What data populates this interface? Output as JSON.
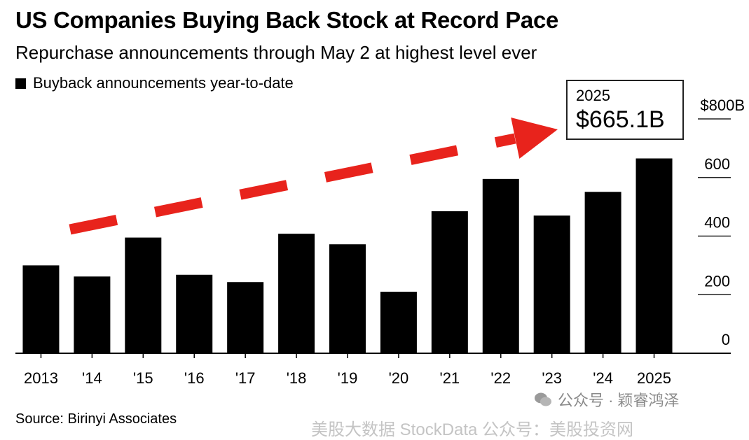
{
  "chart_data": {
    "type": "bar",
    "title": "US Companies Buying Back Stock at Record Pace",
    "subtitle": "Repurchase announcements through May 2 at highest level ever",
    "legend": [
      "Buyback announcements year-to-date"
    ],
    "categories": [
      "2013",
      "'14",
      "'15",
      "'16",
      "'17",
      "'18",
      "'19",
      "'20",
      "'21",
      "'22",
      "'23",
      "'24",
      "2025"
    ],
    "series": [
      {
        "name": "Buyback announcements year-to-date",
        "values": [
          300,
          262,
          395,
          268,
          243,
          408,
          372,
          210,
          485,
          595,
          470,
          551,
          665.1
        ]
      }
    ],
    "ylim": [
      0,
      800
    ],
    "yticks": [
      0,
      200,
      400,
      600,
      800
    ],
    "ytick_labels": [
      "0",
      "200",
      "400",
      "600",
      "$800B"
    ],
    "y_axis_position": "right",
    "grid": "short horizontal marks at right axis",
    "bar_color": "#000000",
    "annotation": {
      "year": "2025",
      "value": "$665.1B"
    },
    "trend_arrow_color": "#e8231c",
    "source": "Source: Birinyi Associates"
  },
  "watermark": {
    "line1": "公众号 · 颖睿鸿泽",
    "line2": "美股大数据 StockData  公众号：美股投资网"
  }
}
